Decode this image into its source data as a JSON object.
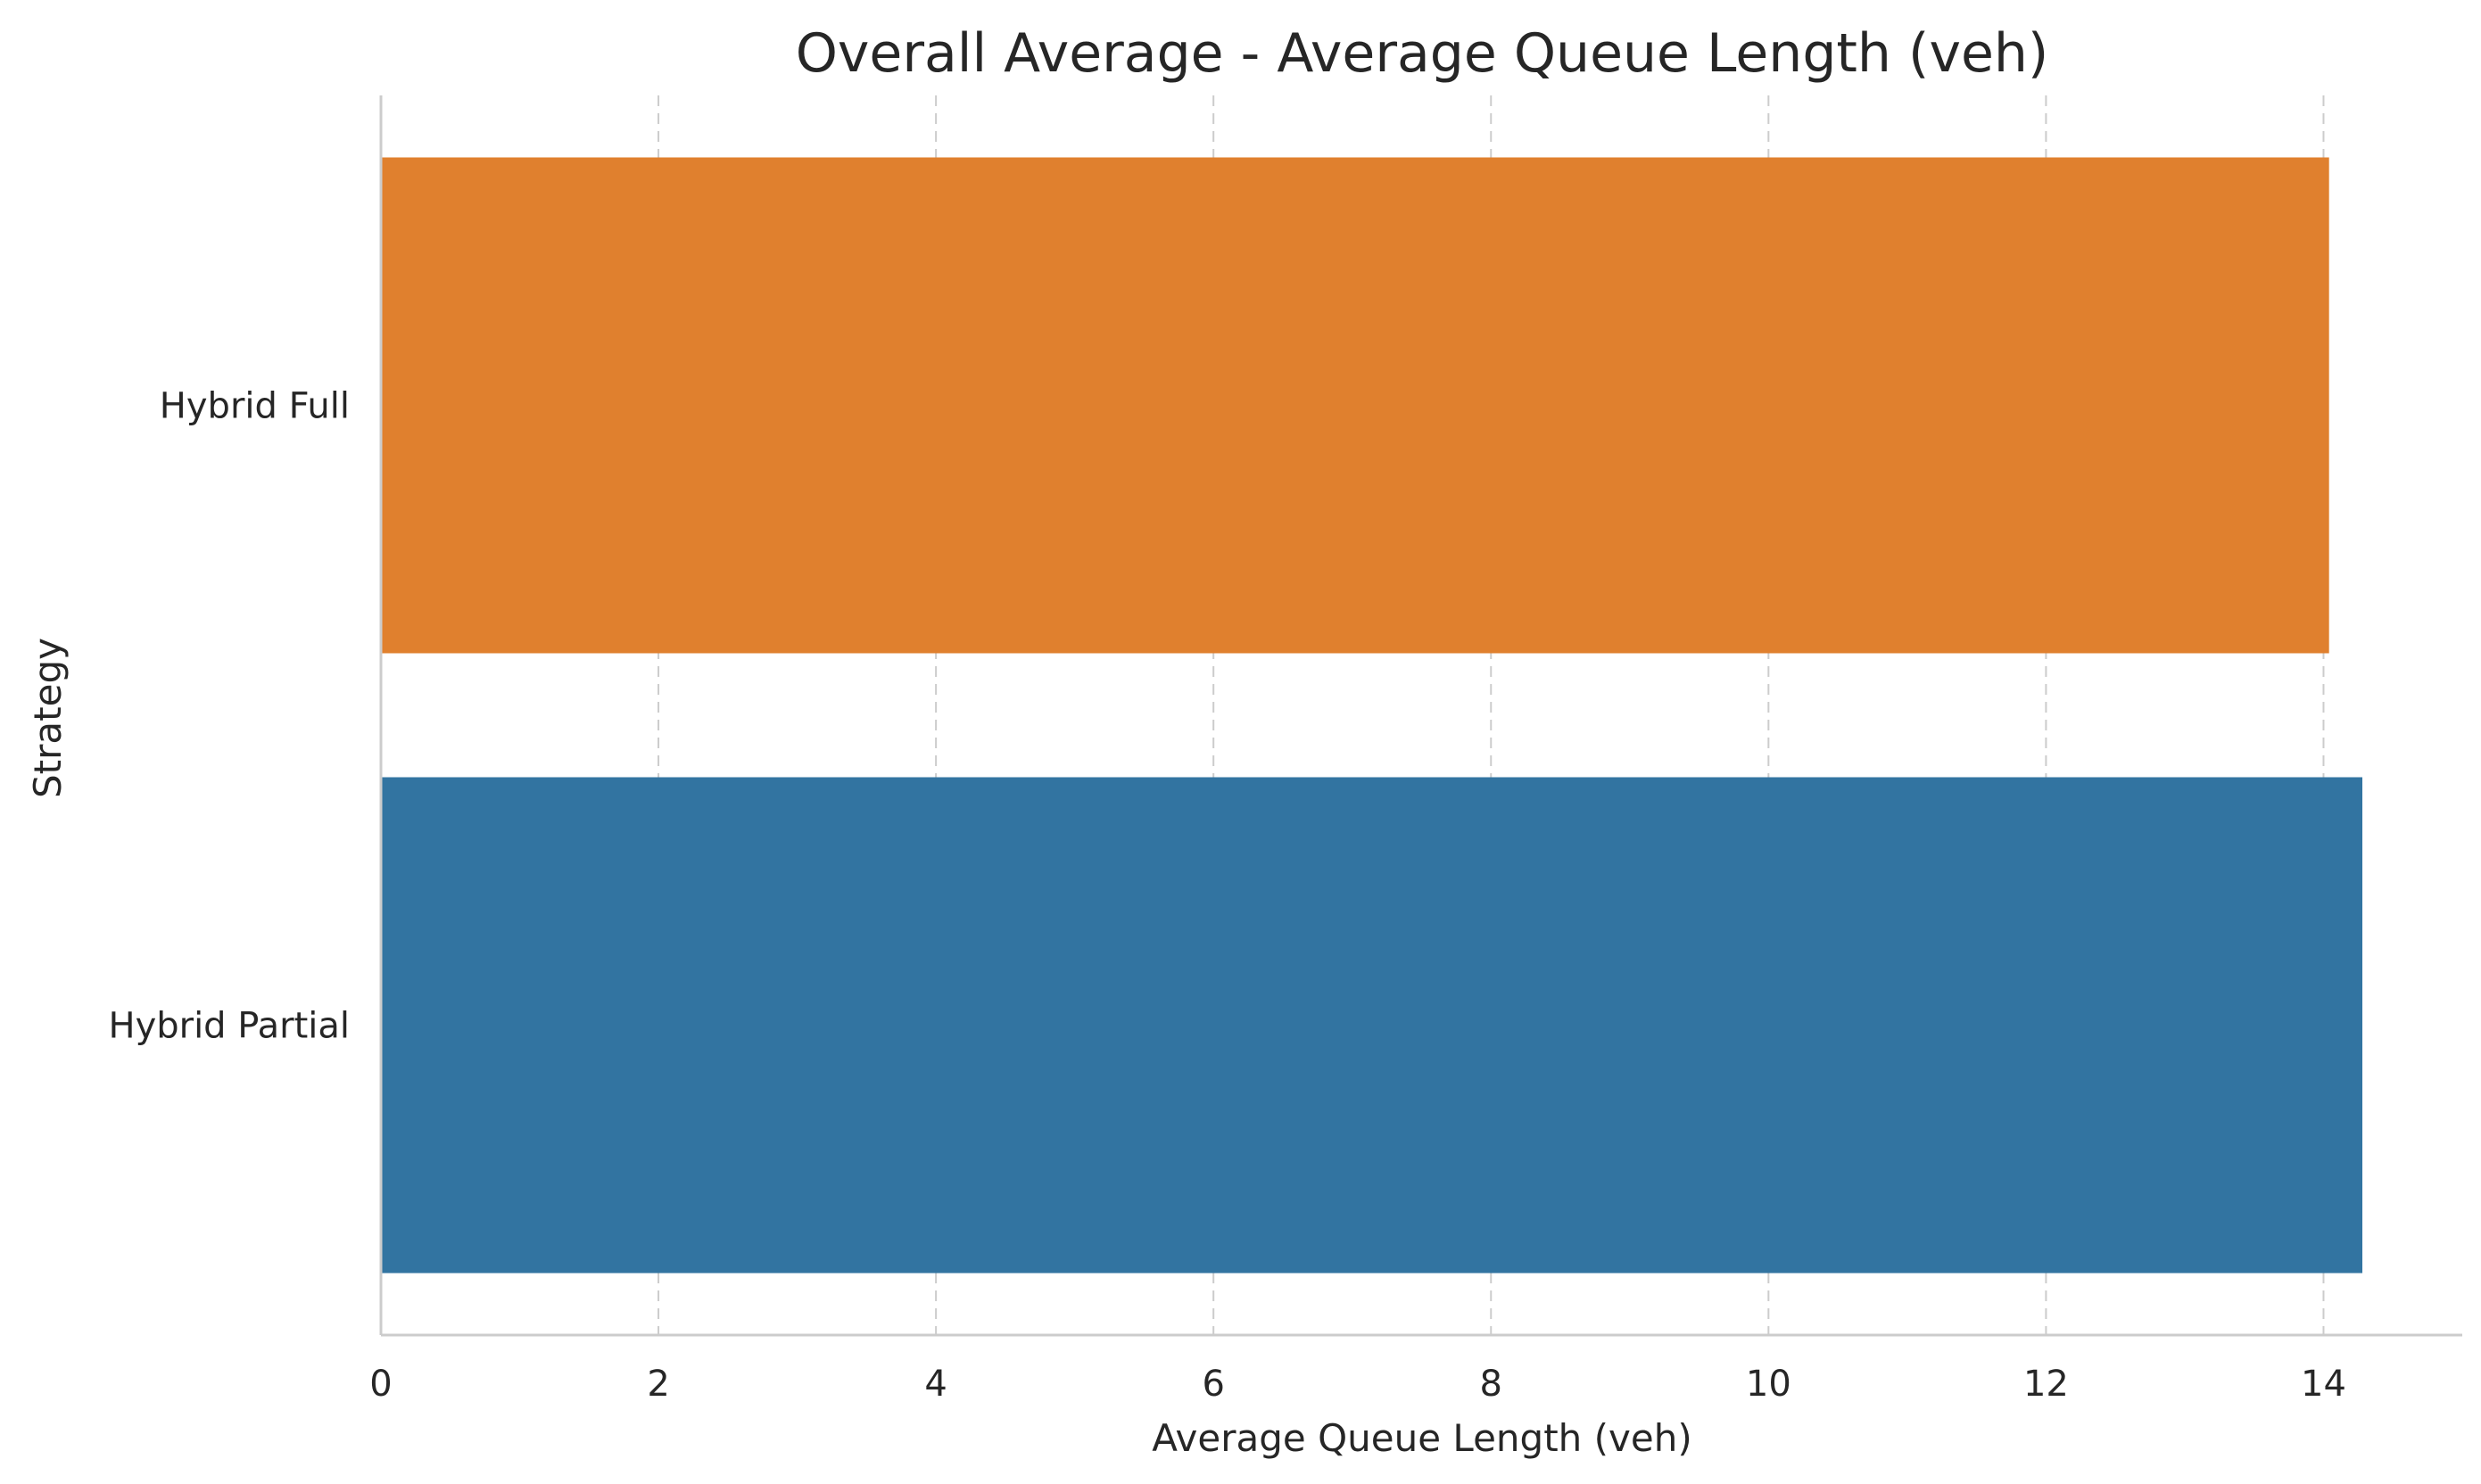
{
  "chart_data": {
    "type": "bar",
    "orientation": "horizontal",
    "title": "Overall Average - Average Queue Length (veh)",
    "xlabel": "Average Queue Length (veh)",
    "ylabel": "Strategy",
    "categories": [
      "Hybrid Full",
      "Hybrid Partial"
    ],
    "values": [
      14.04,
      14.28
    ],
    "bar_colors": [
      "#e0802e",
      "#3274a1"
    ],
    "xlim": [
      0,
      15
    ],
    "xticks": [
      "0",
      "2",
      "4",
      "6",
      "8",
      "10",
      "12",
      "14"
    ],
    "grid": "x-dashed",
    "legend": "none"
  }
}
